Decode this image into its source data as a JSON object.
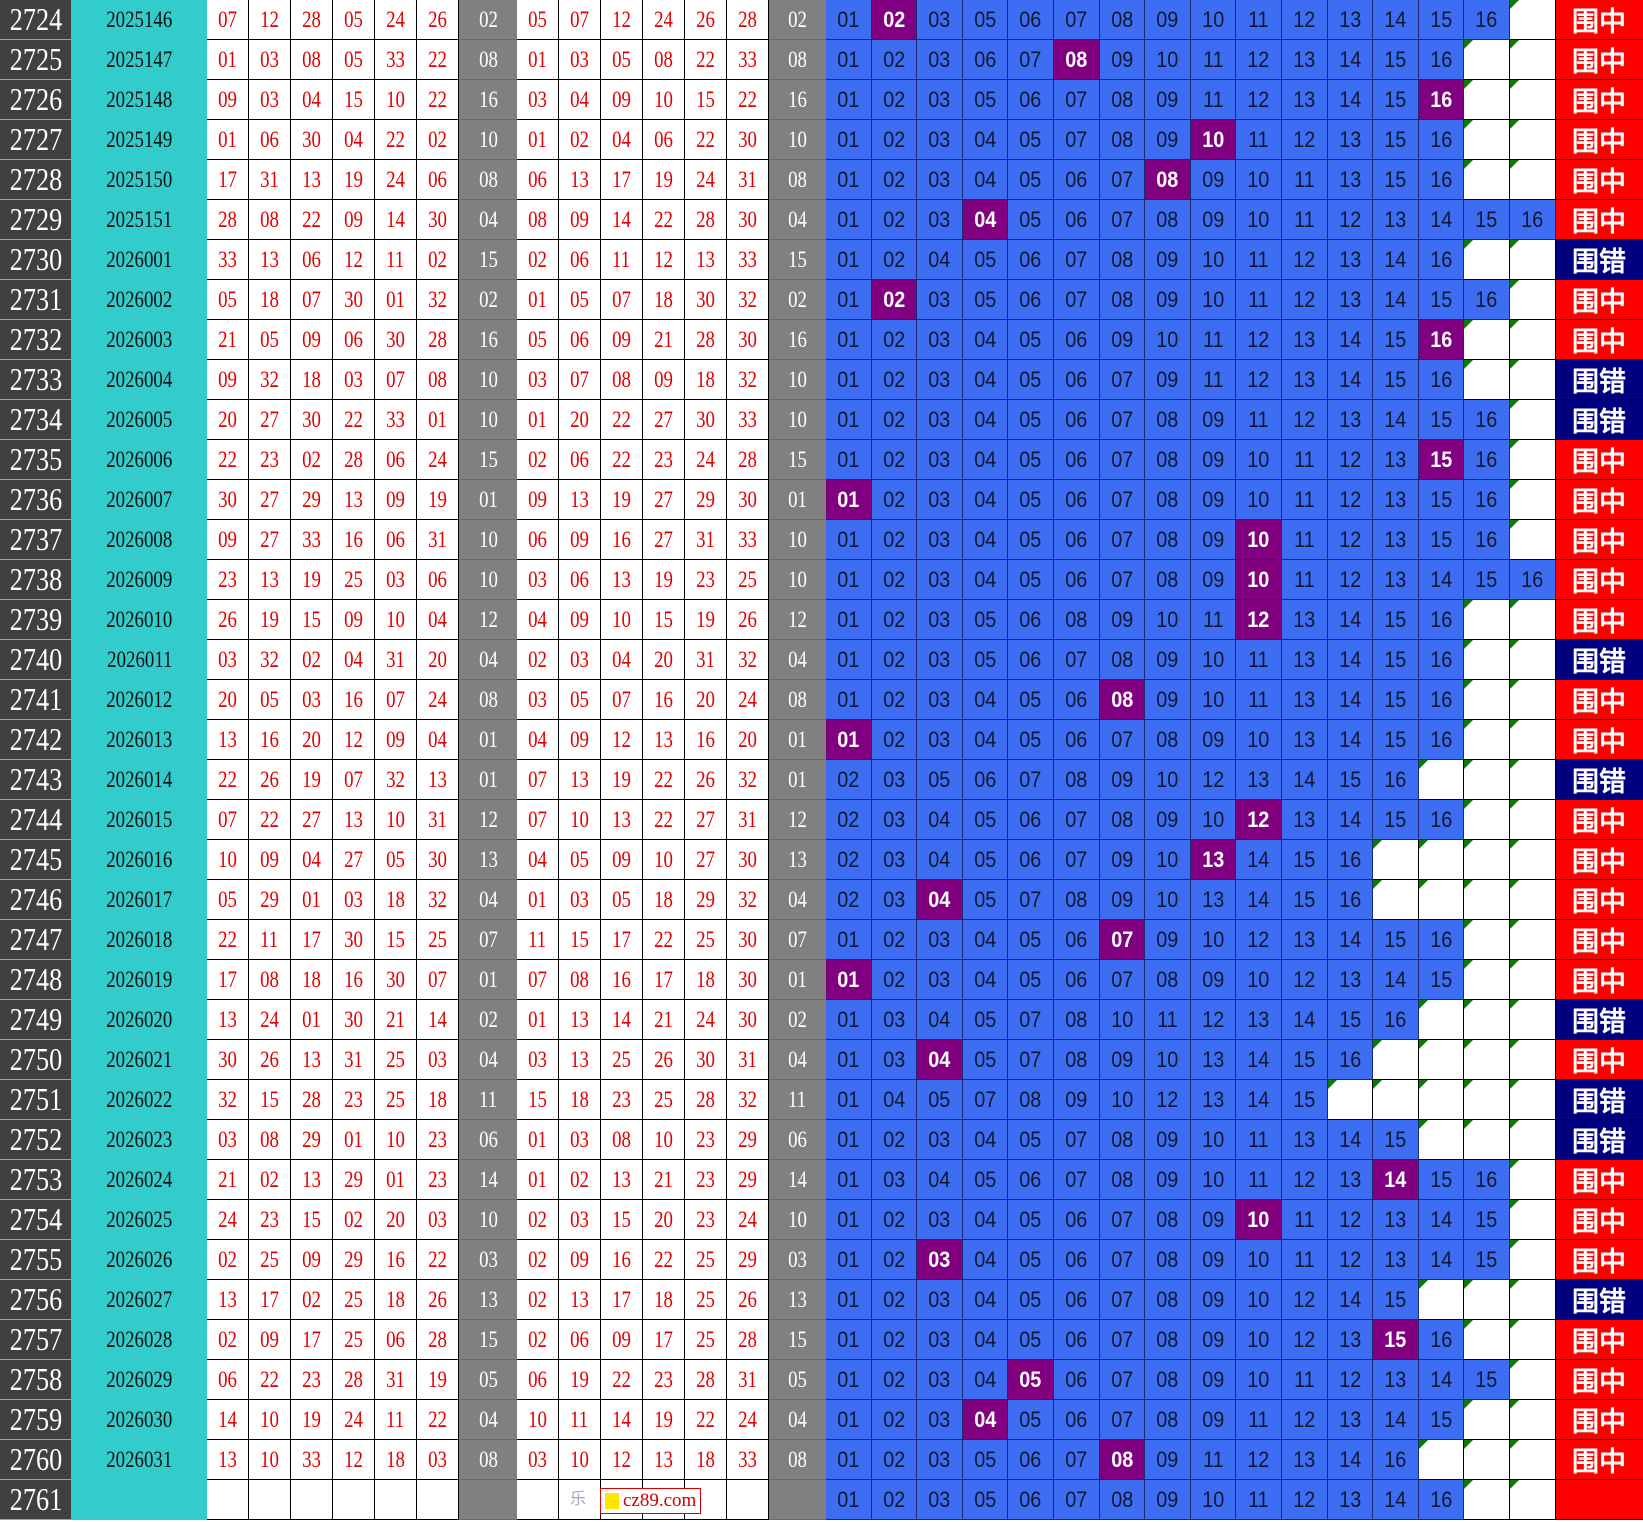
{
  "colors": {
    "hit_result": "#ff0000",
    "miss_result": "#000080",
    "blue_cell": "#3d6df2",
    "highlight": "#800080",
    "issue_bg": "#33cccc",
    "special_bg": "#808080"
  },
  "watermark": {
    "text": "cz89.com",
    "mark": "乐"
  },
  "labels": {
    "hit": "围中",
    "miss": "围错"
  },
  "rows": [
    {
      "n": "2724",
      "issue": "2025146",
      "draw": [
        "07",
        "12",
        "28",
        "05",
        "24",
        "26"
      ],
      "sp": "02",
      "sorted": [
        "05",
        "07",
        "12",
        "24",
        "26",
        "28"
      ],
      "blue": "01 02 03 05 06 07 08 09 10 11 12 13 14 15 16",
      "hit": "02",
      "result": "hit"
    },
    {
      "n": "2725",
      "issue": "2025147",
      "draw": [
        "01",
        "03",
        "08",
        "05",
        "33",
        "22"
      ],
      "sp": "08",
      "sorted": [
        "01",
        "03",
        "05",
        "08",
        "22",
        "33"
      ],
      "blue": "01 02 03 06 07 08 09 10 11 12 13 14 15 16",
      "hit": "08",
      "result": "hit"
    },
    {
      "n": "2726",
      "issue": "2025148",
      "draw": [
        "09",
        "03",
        "04",
        "15",
        "10",
        "22"
      ],
      "sp": "16",
      "sorted": [
        "03",
        "04",
        "09",
        "10",
        "15",
        "22"
      ],
      "blue": "01 02 03 05 06 07 08 09 11 12 13 14 15 16",
      "hit": "16",
      "result": "hit"
    },
    {
      "n": "2727",
      "issue": "2025149",
      "draw": [
        "01",
        "06",
        "30",
        "04",
        "22",
        "02"
      ],
      "sp": "10",
      "sorted": [
        "01",
        "02",
        "04",
        "06",
        "22",
        "30"
      ],
      "blue": "01 02 03 04 05 07 08 09 10 11 12 13 15 16",
      "hit": "10",
      "result": "hit"
    },
    {
      "n": "2728",
      "issue": "2025150",
      "draw": [
        "17",
        "31",
        "13",
        "19",
        "24",
        "06"
      ],
      "sp": "08",
      "sorted": [
        "06",
        "13",
        "17",
        "19",
        "24",
        "31"
      ],
      "blue": "01 02 03 04 05 06 07 08 09 10 11 13 15 16",
      "hit": "08",
      "result": "hit"
    },
    {
      "n": "2729",
      "issue": "2025151",
      "draw": [
        "28",
        "08",
        "22",
        "09",
        "14",
        "30"
      ],
      "sp": "04",
      "sorted": [
        "08",
        "09",
        "14",
        "22",
        "28",
        "30"
      ],
      "blue": "01 02 03 04 05 06 07 08 09 10 11 12 13 14 15 16",
      "hit": "04",
      "result": "hit"
    },
    {
      "n": "2730",
      "issue": "2026001",
      "draw": [
        "33",
        "13",
        "06",
        "12",
        "11",
        "02"
      ],
      "sp": "15",
      "sorted": [
        "02",
        "06",
        "11",
        "12",
        "13",
        "33"
      ],
      "blue": "01 02 04 05 06 07 08 09 10 11 12 13 14 16",
      "hit": "",
      "result": "miss"
    },
    {
      "n": "2731",
      "issue": "2026002",
      "draw": [
        "05",
        "18",
        "07",
        "30",
        "01",
        "32"
      ],
      "sp": "02",
      "sorted": [
        "01",
        "05",
        "07",
        "18",
        "30",
        "32"
      ],
      "blue": "01 02 03 05 06 07 08 09 10 11 12 13 14 15 16",
      "hit": "02",
      "result": "hit"
    },
    {
      "n": "2732",
      "issue": "2026003",
      "draw": [
        "21",
        "05",
        "09",
        "06",
        "30",
        "28"
      ],
      "sp": "16",
      "sorted": [
        "05",
        "06",
        "09",
        "21",
        "28",
        "30"
      ],
      "blue": "01 02 03 04 05 06 09 10 11 12 13 14 15 16",
      "hit": "16",
      "result": "hit"
    },
    {
      "n": "2733",
      "issue": "2026004",
      "draw": [
        "09",
        "32",
        "18",
        "03",
        "07",
        "08"
      ],
      "sp": "10",
      "sorted": [
        "03",
        "07",
        "08",
        "09",
        "18",
        "32"
      ],
      "blue": "01 02 03 04 05 06 07 09 11 12 13 14 15 16",
      "hit": "",
      "result": "miss"
    },
    {
      "n": "2734",
      "issue": "2026005",
      "draw": [
        "20",
        "27",
        "30",
        "22",
        "33",
        "01"
      ],
      "sp": "10",
      "sorted": [
        "01",
        "20",
        "22",
        "27",
        "30",
        "33"
      ],
      "blue": "01 02 03 04 05 06 07 08 09 11 12 13 14 15 16",
      "hit": "",
      "result": "miss"
    },
    {
      "n": "2735",
      "issue": "2026006",
      "draw": [
        "22",
        "23",
        "02",
        "28",
        "06",
        "24"
      ],
      "sp": "15",
      "sorted": [
        "02",
        "06",
        "22",
        "23",
        "24",
        "28"
      ],
      "blue": "01 02 03 04 05 06 07 08 09 10 11 12 13 15 16",
      "hit": "15",
      "result": "hit"
    },
    {
      "n": "2736",
      "issue": "2026007",
      "draw": [
        "30",
        "27",
        "29",
        "13",
        "09",
        "19"
      ],
      "sp": "01",
      "sorted": [
        "09",
        "13",
        "19",
        "27",
        "29",
        "30"
      ],
      "blue": "01 02 03 04 05 06 07 08 09 10 11 12 13 15 16",
      "hit": "01",
      "result": "hit"
    },
    {
      "n": "2737",
      "issue": "2026008",
      "draw": [
        "09",
        "27",
        "33",
        "16",
        "06",
        "31"
      ],
      "sp": "10",
      "sorted": [
        "06",
        "09",
        "16",
        "27",
        "31",
        "33"
      ],
      "blue": "01 02 03 04 05 06 07 08 09 10 11 12 13 15 16",
      "hit": "10",
      "result": "hit"
    },
    {
      "n": "2738",
      "issue": "2026009",
      "draw": [
        "23",
        "13",
        "19",
        "25",
        "03",
        "06"
      ],
      "sp": "10",
      "sorted": [
        "03",
        "06",
        "13",
        "19",
        "23",
        "25"
      ],
      "blue": "01 02 03 04 05 06 07 08 09 10 11 12 13 14 15 16",
      "hit": "10",
      "result": "hit"
    },
    {
      "n": "2739",
      "issue": "2026010",
      "draw": [
        "26",
        "19",
        "15",
        "09",
        "10",
        "04"
      ],
      "sp": "12",
      "sorted": [
        "04",
        "09",
        "10",
        "15",
        "19",
        "26"
      ],
      "blue": "01 02 03 05 06 08 09 10 11 12 13 14 15 16",
      "hit": "12",
      "result": "hit"
    },
    {
      "n": "2740",
      "issue": "2026011",
      "draw": [
        "03",
        "32",
        "02",
        "04",
        "31",
        "20"
      ],
      "sp": "04",
      "sorted": [
        "02",
        "03",
        "04",
        "20",
        "31",
        "32"
      ],
      "blue": "01 02 03 05 06 07 08 09 10 11 13 14 15 16",
      "hit": "",
      "result": "miss"
    },
    {
      "n": "2741",
      "issue": "2026012",
      "draw": [
        "20",
        "05",
        "03",
        "16",
        "07",
        "24"
      ],
      "sp": "08",
      "sorted": [
        "03",
        "05",
        "07",
        "16",
        "20",
        "24"
      ],
      "blue": "01 02 03 04 05 06 08 09 10 11 13 14 15 16",
      "hit": "08",
      "result": "hit"
    },
    {
      "n": "2742",
      "issue": "2026013",
      "draw": [
        "13",
        "16",
        "20",
        "12",
        "09",
        "04"
      ],
      "sp": "01",
      "sorted": [
        "04",
        "09",
        "12",
        "13",
        "16",
        "20"
      ],
      "blue": "01 02 03 04 05 06 07 08 09 10 13 14 15 16",
      "hit": "01",
      "result": "hit"
    },
    {
      "n": "2743",
      "issue": "2026014",
      "draw": [
        "22",
        "26",
        "19",
        "07",
        "32",
        "13"
      ],
      "sp": "01",
      "sorted": [
        "07",
        "13",
        "19",
        "22",
        "26",
        "32"
      ],
      "blue": "02 03 05 06 07 08 09 10 12 13 14 15 16",
      "hit": "",
      "result": "miss"
    },
    {
      "n": "2744",
      "issue": "2026015",
      "draw": [
        "07",
        "22",
        "27",
        "13",
        "10",
        "31"
      ],
      "sp": "12",
      "sorted": [
        "07",
        "10",
        "13",
        "22",
        "27",
        "31"
      ],
      "blue": "02 03 04 05 06 07 08 09 10 12 13 14 15 16",
      "hit": "12",
      "result": "hit"
    },
    {
      "n": "2745",
      "issue": "2026016",
      "draw": [
        "10",
        "09",
        "04",
        "27",
        "05",
        "30"
      ],
      "sp": "13",
      "sorted": [
        "04",
        "05",
        "09",
        "10",
        "27",
        "30"
      ],
      "blue": "02 03 04 05 06 07 09 10 13 14 15 16",
      "hit": "13",
      "result": "hit"
    },
    {
      "n": "2746",
      "issue": "2026017",
      "draw": [
        "05",
        "29",
        "01",
        "03",
        "18",
        "32"
      ],
      "sp": "04",
      "sorted": [
        "01",
        "03",
        "05",
        "18",
        "29",
        "32"
      ],
      "blue": "02 03 04 05 07 08 09 10 13 14 15 16",
      "hit": "04",
      "result": "hit"
    },
    {
      "n": "2747",
      "issue": "2026018",
      "draw": [
        "22",
        "11",
        "17",
        "30",
        "15",
        "25"
      ],
      "sp": "07",
      "sorted": [
        "11",
        "15",
        "17",
        "22",
        "25",
        "30"
      ],
      "blue": "01 02 03 04 05 06 07 09 10 12 13 14 15 16",
      "hit": "07",
      "result": "hit"
    },
    {
      "n": "2748",
      "issue": "2026019",
      "draw": [
        "17",
        "08",
        "18",
        "16",
        "30",
        "07"
      ],
      "sp": "01",
      "sorted": [
        "07",
        "08",
        "16",
        "17",
        "18",
        "30"
      ],
      "blue": "01 02 03 04 05 06 07 08 09 10 12 13 14 15",
      "hit": "01",
      "result": "hit"
    },
    {
      "n": "2749",
      "issue": "2026020",
      "draw": [
        "13",
        "24",
        "01",
        "30",
        "21",
        "14"
      ],
      "sp": "02",
      "sorted": [
        "01",
        "13",
        "14",
        "21",
        "24",
        "30"
      ],
      "blue": "01 03 04 05 07 08 10 11 12 13 14 15 16",
      "hit": "",
      "result": "miss"
    },
    {
      "n": "2750",
      "issue": "2026021",
      "draw": [
        "30",
        "26",
        "13",
        "31",
        "25",
        "03"
      ],
      "sp": "04",
      "sorted": [
        "03",
        "13",
        "25",
        "26",
        "30",
        "31"
      ],
      "blue": "01 03 04 05 07 08 09 10 13 14 15 16",
      "hit": "04",
      "result": "hit"
    },
    {
      "n": "2751",
      "issue": "2026022",
      "draw": [
        "32",
        "15",
        "28",
        "23",
        "25",
        "18"
      ],
      "sp": "11",
      "sorted": [
        "15",
        "18",
        "23",
        "25",
        "28",
        "32"
      ],
      "blue": "01 04 05 07 08 09 10 12 13 14 15",
      "hit": "",
      "result": "miss"
    },
    {
      "n": "2752",
      "issue": "2026023",
      "draw": [
        "03",
        "08",
        "29",
        "01",
        "10",
        "23"
      ],
      "sp": "06",
      "sorted": [
        "01",
        "03",
        "08",
        "10",
        "23",
        "29"
      ],
      "blue": "01 02 03 04 05 07 08 09 10 11 13 14 15",
      "hit": "",
      "result": "miss"
    },
    {
      "n": "2753",
      "issue": "2026024",
      "draw": [
        "21",
        "02",
        "13",
        "29",
        "01",
        "23"
      ],
      "sp": "14",
      "sorted": [
        "01",
        "02",
        "13",
        "21",
        "23",
        "29"
      ],
      "blue": "01 03 04 05 06 07 08 09 10 11 12 13 14 15 16",
      "hit": "14",
      "result": "hit"
    },
    {
      "n": "2754",
      "issue": "2026025",
      "draw": [
        "24",
        "23",
        "15",
        "02",
        "20",
        "03"
      ],
      "sp": "10",
      "sorted": [
        "02",
        "03",
        "15",
        "20",
        "23",
        "24"
      ],
      "blue": "01 02 03 04 05 06 07 08 09 10 11 12 13 14 15",
      "hit": "10",
      "result": "hit"
    },
    {
      "n": "2755",
      "issue": "2026026",
      "draw": [
        "02",
        "25",
        "09",
        "29",
        "16",
        "22"
      ],
      "sp": "03",
      "sorted": [
        "02",
        "09",
        "16",
        "22",
        "25",
        "29"
      ],
      "blue": "01 02 03 04 05 06 07 08 09 10 11 12 13 14 15",
      "hit": "03",
      "result": "hit"
    },
    {
      "n": "2756",
      "issue": "2026027",
      "draw": [
        "13",
        "17",
        "02",
        "25",
        "18",
        "26"
      ],
      "sp": "13",
      "sorted": [
        "02",
        "13",
        "17",
        "18",
        "25",
        "26"
      ],
      "blue": "01 02 03 04 05 06 07 08 09 10 12 14 15",
      "hit": "",
      "result": "miss"
    },
    {
      "n": "2757",
      "issue": "2026028",
      "draw": [
        "02",
        "09",
        "17",
        "25",
        "06",
        "28"
      ],
      "sp": "15",
      "sorted": [
        "02",
        "06",
        "09",
        "17",
        "25",
        "28"
      ],
      "blue": "01 02 03 04 05 06 07 08 09 10 12 13 15 16",
      "hit": "15",
      "result": "hit"
    },
    {
      "n": "2758",
      "issue": "2026029",
      "draw": [
        "06",
        "22",
        "23",
        "28",
        "31",
        "19"
      ],
      "sp": "05",
      "sorted": [
        "06",
        "19",
        "22",
        "23",
        "28",
        "31"
      ],
      "blue": "01 02 03 04 05 06 07 08 09 10 11 12 13 14 15",
      "hit": "05",
      "result": "hit"
    },
    {
      "n": "2759",
      "issue": "2026030",
      "draw": [
        "14",
        "10",
        "19",
        "24",
        "11",
        "22"
      ],
      "sp": "04",
      "sorted": [
        "10",
        "11",
        "14",
        "19",
        "22",
        "24"
      ],
      "blue": "01 02 03 04 05 06 07 08 09 11 12 13 14 15",
      "hit": "04",
      "result": "hit"
    },
    {
      "n": "2760",
      "issue": "2026031",
      "draw": [
        "13",
        "10",
        "33",
        "12",
        "18",
        "03"
      ],
      "sp": "08",
      "sorted": [
        "03",
        "10",
        "12",
        "13",
        "18",
        "33"
      ],
      "blue": "01 02 03 05 06 07 08 09 11 12 13 14 16",
      "hit": "08",
      "result": "hit"
    },
    {
      "n": "2761",
      "issue": "",
      "draw": [
        "",
        "",
        "",
        "",
        "",
        ""
      ],
      "sp": "",
      "sorted": [
        "",
        "",
        "",
        "",
        "",
        ""
      ],
      "blue": "01 02 03 05 06 07 08 09 10 11 12 13 14 16",
      "hit": "",
      "result": "pending"
    }
  ]
}
